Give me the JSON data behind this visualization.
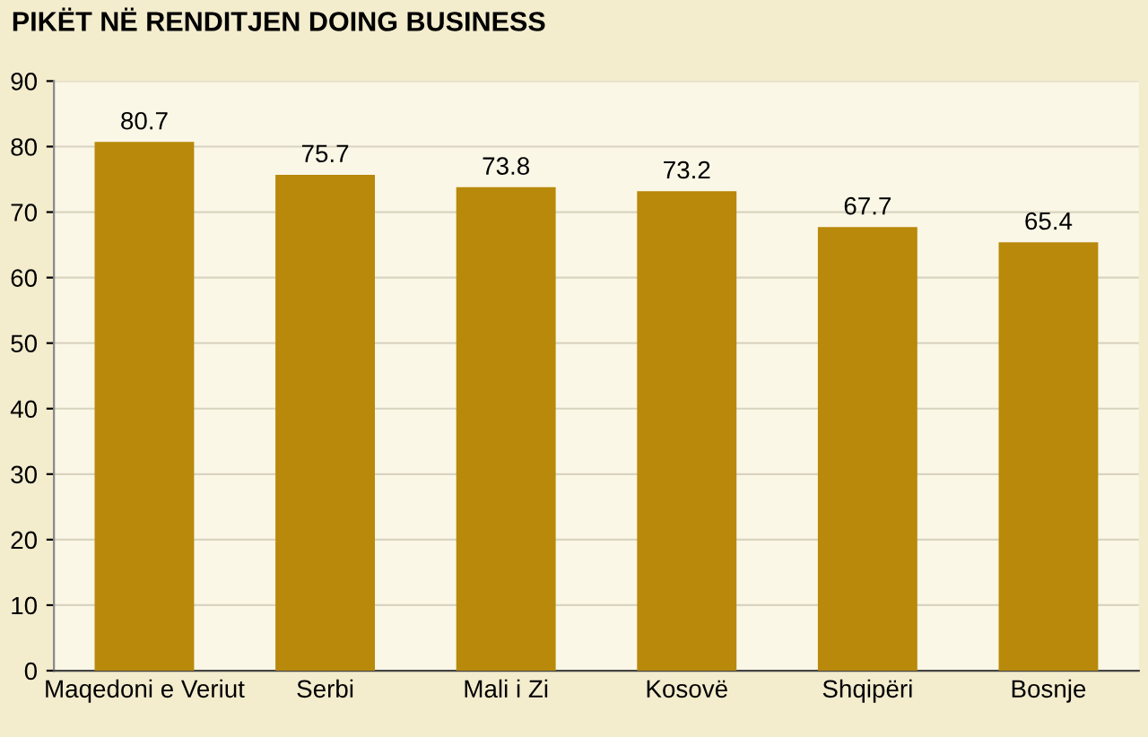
{
  "chart_data": {
    "type": "bar",
    "title": "PIKËT NË RENDITJEN DOING BUSINESS",
    "categories": [
      "Maqedoni e Veriut",
      "Serbi",
      "Mali i Zi",
      "Kosovë",
      "Shqipëri",
      "Bosnje"
    ],
    "values": [
      80.7,
      75.7,
      73.8,
      73.2,
      67.7,
      65.4
    ],
    "color": "#b8890a",
    "ylim": [
      0,
      90
    ],
    "yticks": [
      0,
      10,
      20,
      30,
      40,
      50,
      60,
      70,
      80,
      90
    ],
    "grid": "y",
    "data_labels": true
  }
}
